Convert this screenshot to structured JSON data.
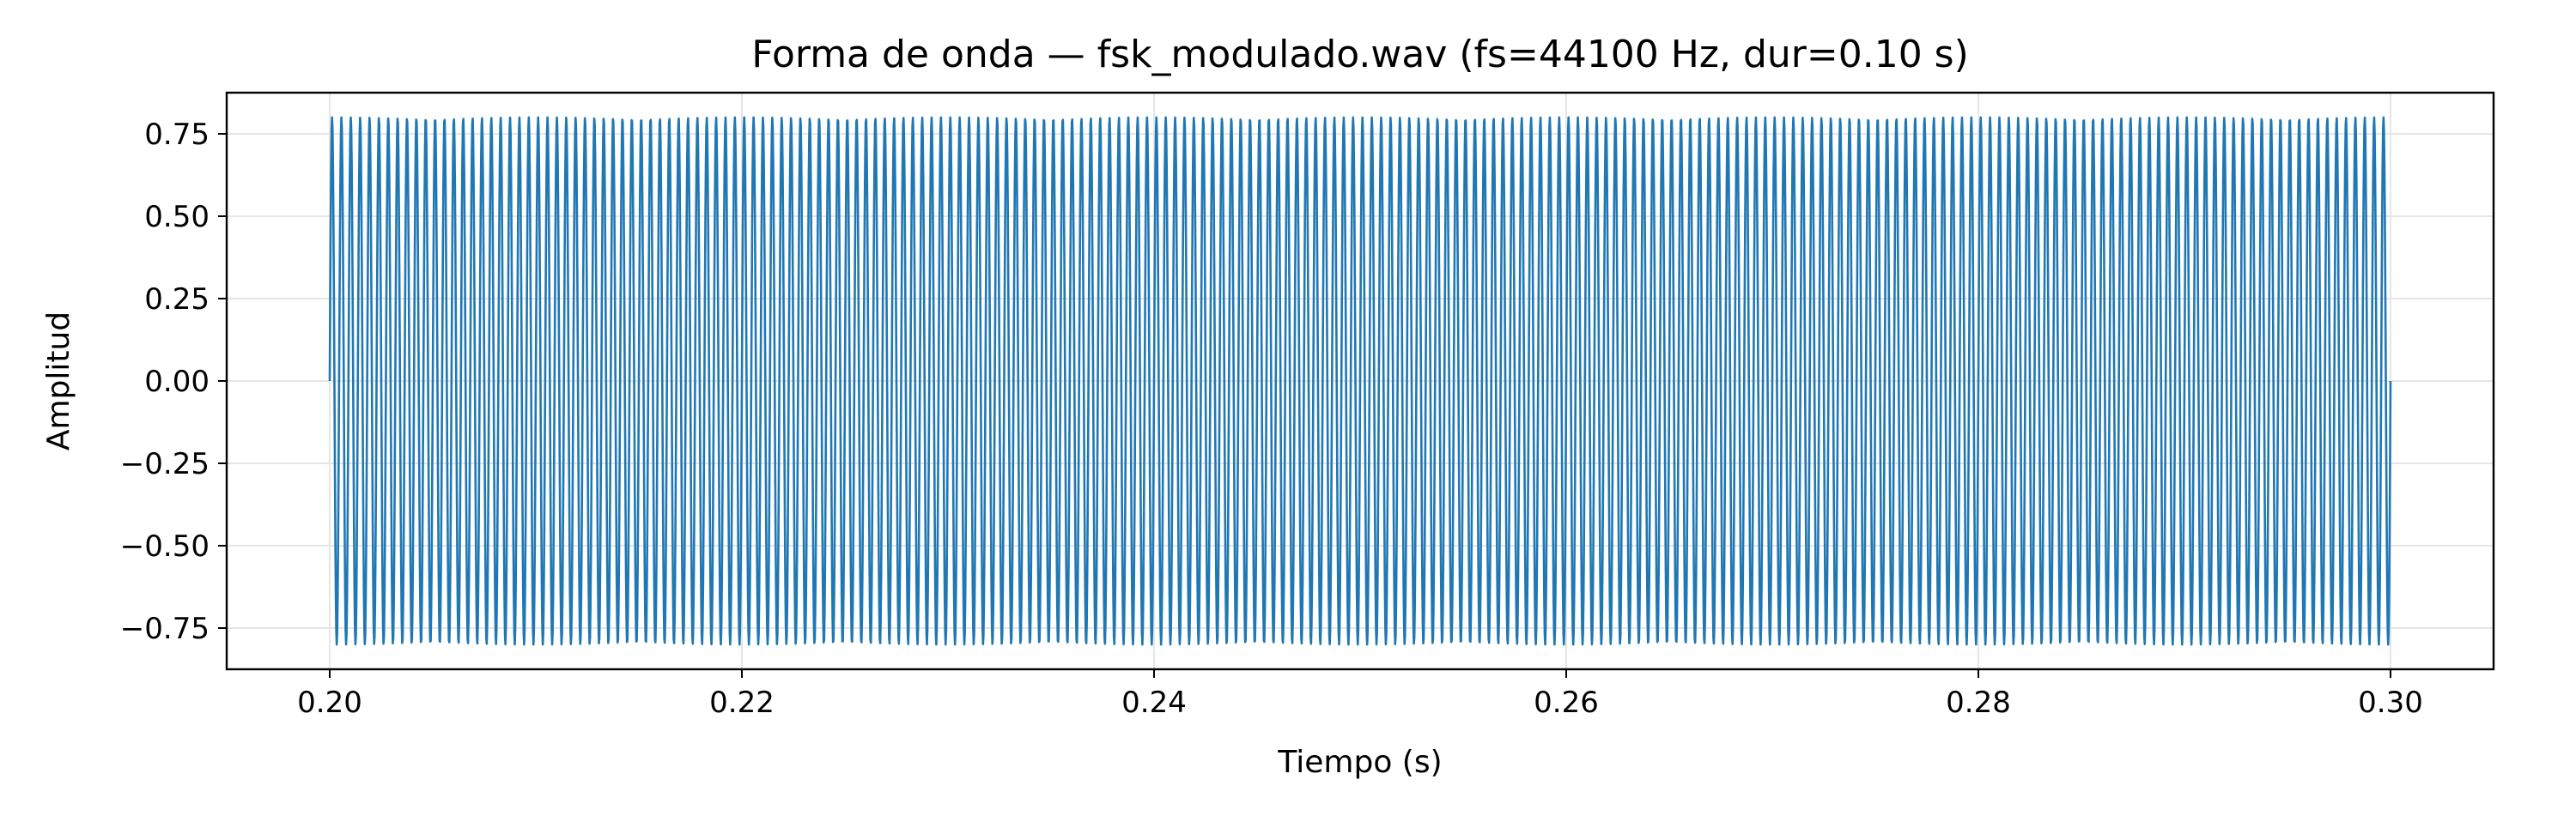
{
  "chart_data": {
    "type": "line",
    "title": "Forma de onda — fsk_modulado.wav (fs=44100 Hz, dur=0.10 s)",
    "xlabel": "Tiempo (s)",
    "ylabel": "Amplitud",
    "xlim": [
      0.195,
      0.305
    ],
    "ylim": [
      -0.875,
      0.875
    ],
    "xticks": [
      0.2,
      0.22,
      0.24,
      0.26,
      0.28,
      0.3
    ],
    "xtick_labels": [
      "0.20",
      "0.22",
      "0.24",
      "0.26",
      "0.28",
      "0.30"
    ],
    "yticks": [
      0.75,
      0.5,
      0.25,
      0.0,
      -0.25,
      -0.5,
      -0.75
    ],
    "ytick_labels": [
      "0.75",
      "0.50",
      "0.25",
      "0.00",
      "−0.25",
      "−0.50",
      "−0.75"
    ],
    "grid": true,
    "legend": "none",
    "series": [
      {
        "color": "#1f77b4",
        "signal": {
          "kind": "sine",
          "amplitude": 0.8,
          "frequency_hz": 2200,
          "sample_rate_hz": 44100,
          "t_start": 0.2,
          "t_end": 0.3
        }
      }
    ]
  }
}
